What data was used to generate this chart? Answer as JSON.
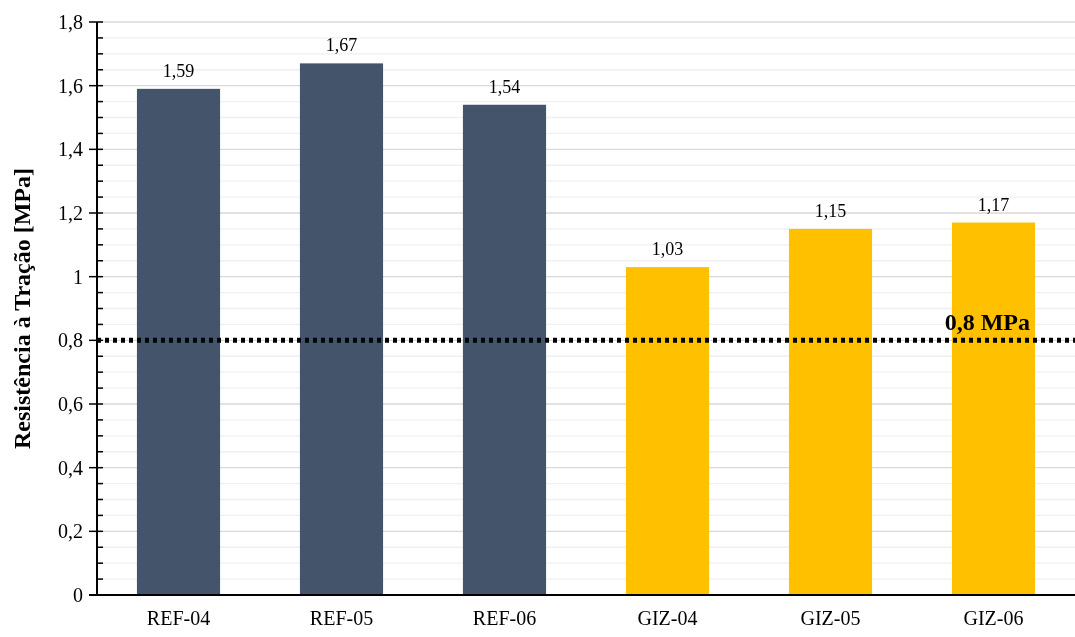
{
  "chart_data": {
    "type": "bar",
    "ylabel": "Resistência à Tração [MPa]",
    "categories": [
      "REF-04",
      "REF-05",
      "REF-06",
      "GIZ-04",
      "GIZ-05",
      "GIZ-06"
    ],
    "values": [
      1.59,
      1.67,
      1.54,
      1.03,
      1.15,
      1.17
    ],
    "colors": [
      "#44546a",
      "#44546a",
      "#44546a",
      "#ffc000",
      "#ffc000",
      "#ffc000"
    ],
    "value_labels": [
      "1,59",
      "1,67",
      "1,54",
      "1,03",
      "1,15",
      "1,17"
    ],
    "ylim": [
      0,
      1.8
    ],
    "yticks": [
      0,
      {
        "value": 0.05,
        "label": null
      },
      {
        "value": 0.1,
        "label": null
      },
      {
        "value": 0.15,
        "label": null
      },
      {
        "value": 0.2,
        "label": "0,2"
      },
      {
        "value": 0.25,
        "label": null
      },
      {
        "value": 0.3,
        "label": null
      },
      {
        "value": 0.35,
        "label": null
      },
      {
        "value": 0.4,
        "label": "0,4"
      },
      {
        "value": 0.45,
        "label": null
      },
      {
        "value": 0.5,
        "label": null
      },
      {
        "value": 0.55,
        "label": null
      },
      {
        "value": 0.6,
        "label": "0,6"
      },
      {
        "value": 0.65,
        "label": null
      },
      {
        "value": 0.7,
        "label": null
      },
      {
        "value": 0.75,
        "label": null
      },
      {
        "value": 0.8,
        "label": "0,8"
      },
      {
        "value": 0.85,
        "label": null
      },
      {
        "value": 0.9,
        "label": null
      },
      {
        "value": 0.95,
        "label": null
      },
      1,
      {
        "value": 1.05,
        "label": null
      },
      {
        "value": 1.1,
        "label": null
      },
      {
        "value": 1.15,
        "label": null
      },
      {
        "value": 1.2,
        "label": "1,2"
      },
      {
        "value": 1.25,
        "label": null
      },
      {
        "value": 1.3,
        "label": null
      },
      {
        "value": 1.35,
        "label": null
      },
      {
        "value": 1.4,
        "label": "1,4"
      },
      {
        "value": 1.45,
        "label": null
      },
      {
        "value": 1.5,
        "label": null
      },
      {
        "value": 1.55,
        "label": null
      },
      {
        "value": 1.6,
        "label": "1,6"
      },
      {
        "value": 1.65,
        "label": null
      },
      {
        "value": 1.7,
        "label": null
      },
      {
        "value": 1.75,
        "label": null
      },
      {
        "value": 1.8,
        "label": "1,8"
      }
    ],
    "grid": "y",
    "ref_lines": [
      {
        "axis": "y",
        "value": 0.8,
        "label": "0,8 MPa",
        "color": "#000000",
        "line_style": "dotted"
      }
    ]
  }
}
